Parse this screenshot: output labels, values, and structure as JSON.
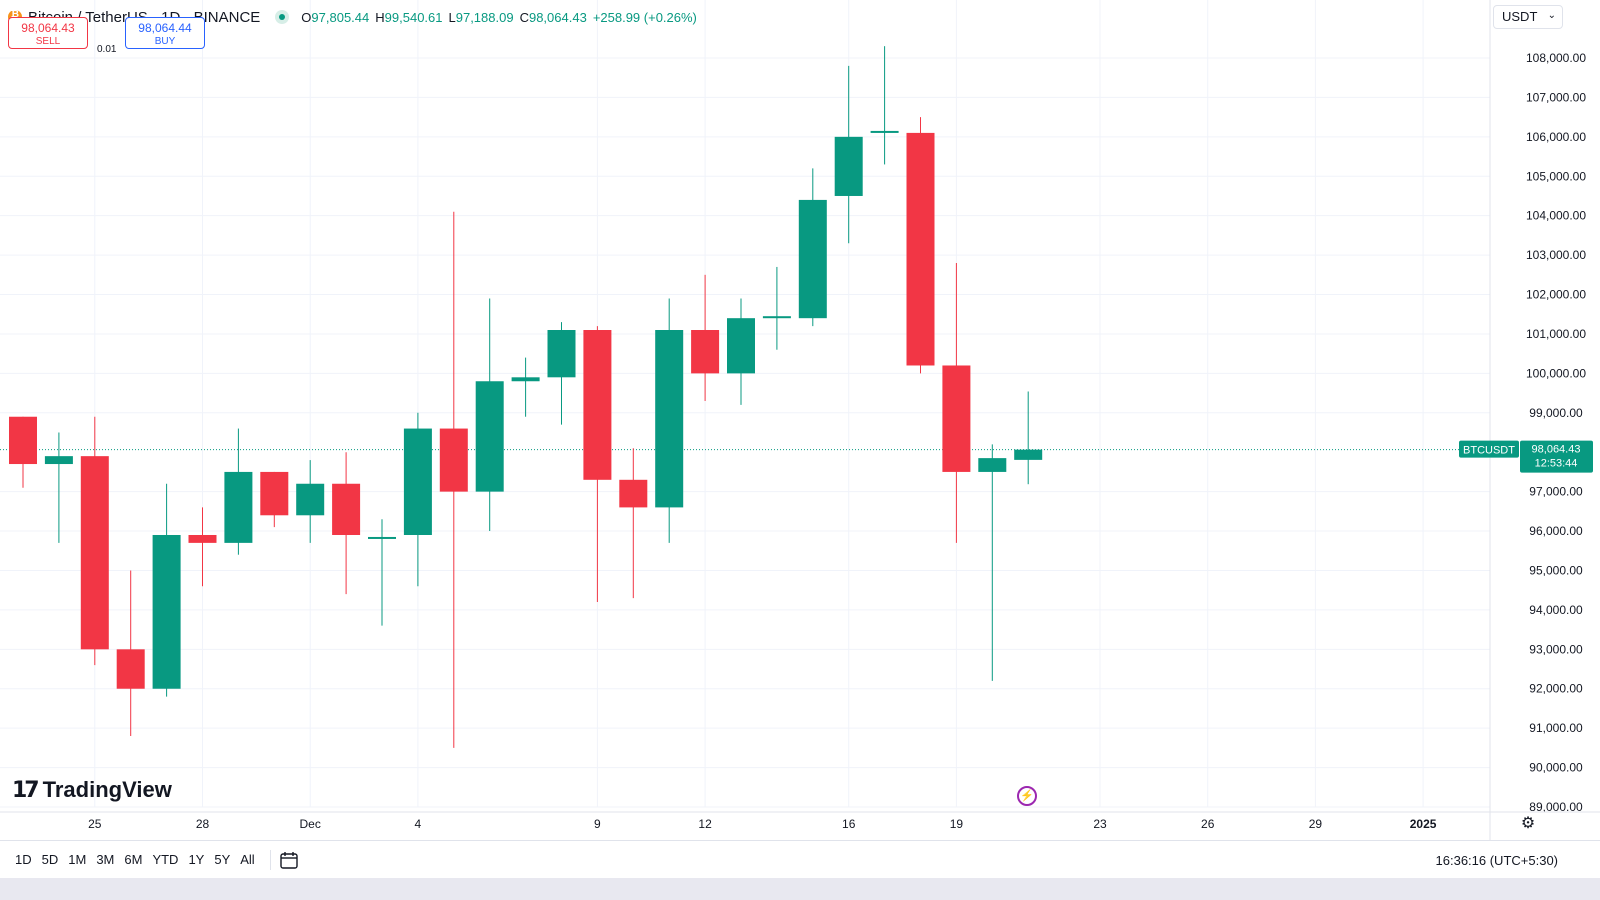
{
  "header": {
    "title": "Bitcoin / TetherUS · 1D · BINANCE",
    "ohlc": {
      "o_label": "O",
      "o": "97,805.44",
      "h_label": "H",
      "h": "99,540.61",
      "l_label": "L",
      "l": "97,188.09",
      "c_label": "C",
      "c": "98,064.43",
      "change": "+258.99 (+0.26%)"
    }
  },
  "trade": {
    "sell_price": "98,064.43",
    "sell_label": "SELL",
    "spread": "0.01",
    "buy_price": "98,064.44",
    "buy_label": "BUY"
  },
  "currency": {
    "value": "USDT"
  },
  "price_label": {
    "symbol": "BTCUSDT",
    "price": "98,064.43",
    "countdown": "12:53:44"
  },
  "watermark": {
    "text": "TradingView"
  },
  "bottom_bar": {
    "ranges": [
      "1D",
      "5D",
      "1M",
      "3M",
      "6M",
      "YTD",
      "1Y",
      "5Y",
      "All"
    ],
    "clock": "16:36:16 (UTC+5:30)"
  },
  "colors": {
    "up": "#089981",
    "down": "#f23645",
    "grid": "#f0f3fa",
    "text": "#131722"
  },
  "icons": [
    "bitcoin-logo-icon",
    "live-status-icon",
    "chevron-down-icon",
    "lightning-icon",
    "settings-gear-icon",
    "calendar-range-icon"
  ],
  "chart_data": {
    "type": "candlestick",
    "symbol": "BTCUSDT",
    "timeframe": "1D",
    "ylim": [
      89000,
      108000
    ],
    "y_ticks": [
      "108,000.00",
      "107,000.00",
      "106,000.00",
      "105,000.00",
      "104,000.00",
      "103,000.00",
      "102,000.00",
      "101,000.00",
      "100,000.00",
      "99,000.00",
      "97,000.00",
      "96,000.00",
      "95,000.00",
      "94,000.00",
      "93,000.00",
      "92,000.00",
      "91,000.00",
      "90,000.00",
      "89,000.00"
    ],
    "x_ticks": [
      "25",
      "28",
      "Dec",
      "4",
      "9",
      "12",
      "16",
      "19",
      "23",
      "26",
      "29",
      "2025"
    ],
    "last_price": 98064.43,
    "candles": [
      {
        "date": "2024-11-23",
        "o": 98900,
        "h": 98900,
        "l": 97100,
        "c": 97700
      },
      {
        "date": "2024-11-24",
        "o": 97700,
        "h": 98500,
        "l": 95700,
        "c": 97900
      },
      {
        "date": "2024-11-25",
        "o": 97900,
        "h": 98900,
        "l": 92600,
        "c": 93000
      },
      {
        "date": "2024-11-26",
        "o": 93000,
        "h": 95000,
        "l": 90800,
        "c": 92000
      },
      {
        "date": "2024-11-27",
        "o": 92000,
        "h": 97200,
        "l": 91800,
        "c": 95900
      },
      {
        "date": "2024-11-28",
        "o": 95900,
        "h": 96600,
        "l": 94600,
        "c": 95700
      },
      {
        "date": "2024-11-29",
        "o": 95700,
        "h": 98600,
        "l": 95400,
        "c": 97500
      },
      {
        "date": "2024-11-30",
        "o": 97500,
        "h": 97500,
        "l": 96100,
        "c": 96400
      },
      {
        "date": "2024-12-01",
        "o": 96400,
        "h": 97800,
        "l": 95700,
        "c": 97200
      },
      {
        "date": "2024-12-02",
        "o": 97200,
        "h": 98000,
        "l": 94400,
        "c": 95900
      },
      {
        "date": "2024-12-03",
        "o": 95800,
        "h": 96300,
        "l": 93600,
        "c": 95850
      },
      {
        "date": "2024-12-04",
        "o": 95900,
        "h": 99000,
        "l": 94600,
        "c": 98600
      },
      {
        "date": "2024-12-05",
        "o": 98600,
        "h": 104100,
        "l": 90500,
        "c": 97000
      },
      {
        "date": "2024-12-06",
        "o": 97000,
        "h": 101900,
        "l": 96000,
        "c": 99800
      },
      {
        "date": "2024-12-07",
        "o": 99800,
        "h": 100400,
        "l": 98900,
        "c": 99900
      },
      {
        "date": "2024-12-08",
        "o": 99900,
        "h": 101300,
        "l": 98700,
        "c": 101100
      },
      {
        "date": "2024-12-09",
        "o": 101100,
        "h": 101200,
        "l": 94200,
        "c": 97300
      },
      {
        "date": "2024-12-10",
        "o": 97300,
        "h": 98100,
        "l": 94300,
        "c": 96600
      },
      {
        "date": "2024-12-11",
        "o": 96600,
        "h": 101900,
        "l": 95700,
        "c": 101100
      },
      {
        "date": "2024-12-12",
        "o": 101100,
        "h": 102500,
        "l": 99300,
        "c": 100000
      },
      {
        "date": "2024-12-13",
        "o": 100000,
        "h": 101900,
        "l": 99200,
        "c": 101400
      },
      {
        "date": "2024-12-14",
        "o": 101400,
        "h": 102700,
        "l": 100600,
        "c": 101450
      },
      {
        "date": "2024-12-15",
        "o": 101400,
        "h": 105200,
        "l": 101200,
        "c": 104400
      },
      {
        "date": "2024-12-16",
        "o": 104500,
        "h": 107800,
        "l": 103300,
        "c": 106000
      },
      {
        "date": "2024-12-17",
        "o": 106100,
        "h": 108300,
        "l": 105300,
        "c": 106150
      },
      {
        "date": "2024-12-18",
        "o": 106100,
        "h": 106500,
        "l": 100000,
        "c": 100200
      },
      {
        "date": "2024-12-19",
        "o": 100200,
        "h": 102800,
        "l": 95700,
        "c": 97500
      },
      {
        "date": "2024-12-20",
        "o": 97500,
        "h": 98200,
        "l": 92200,
        "c": 97850
      },
      {
        "date": "2024-12-21",
        "o": 97805.44,
        "h": 99540.61,
        "l": 97188.09,
        "c": 98064.43
      }
    ]
  }
}
